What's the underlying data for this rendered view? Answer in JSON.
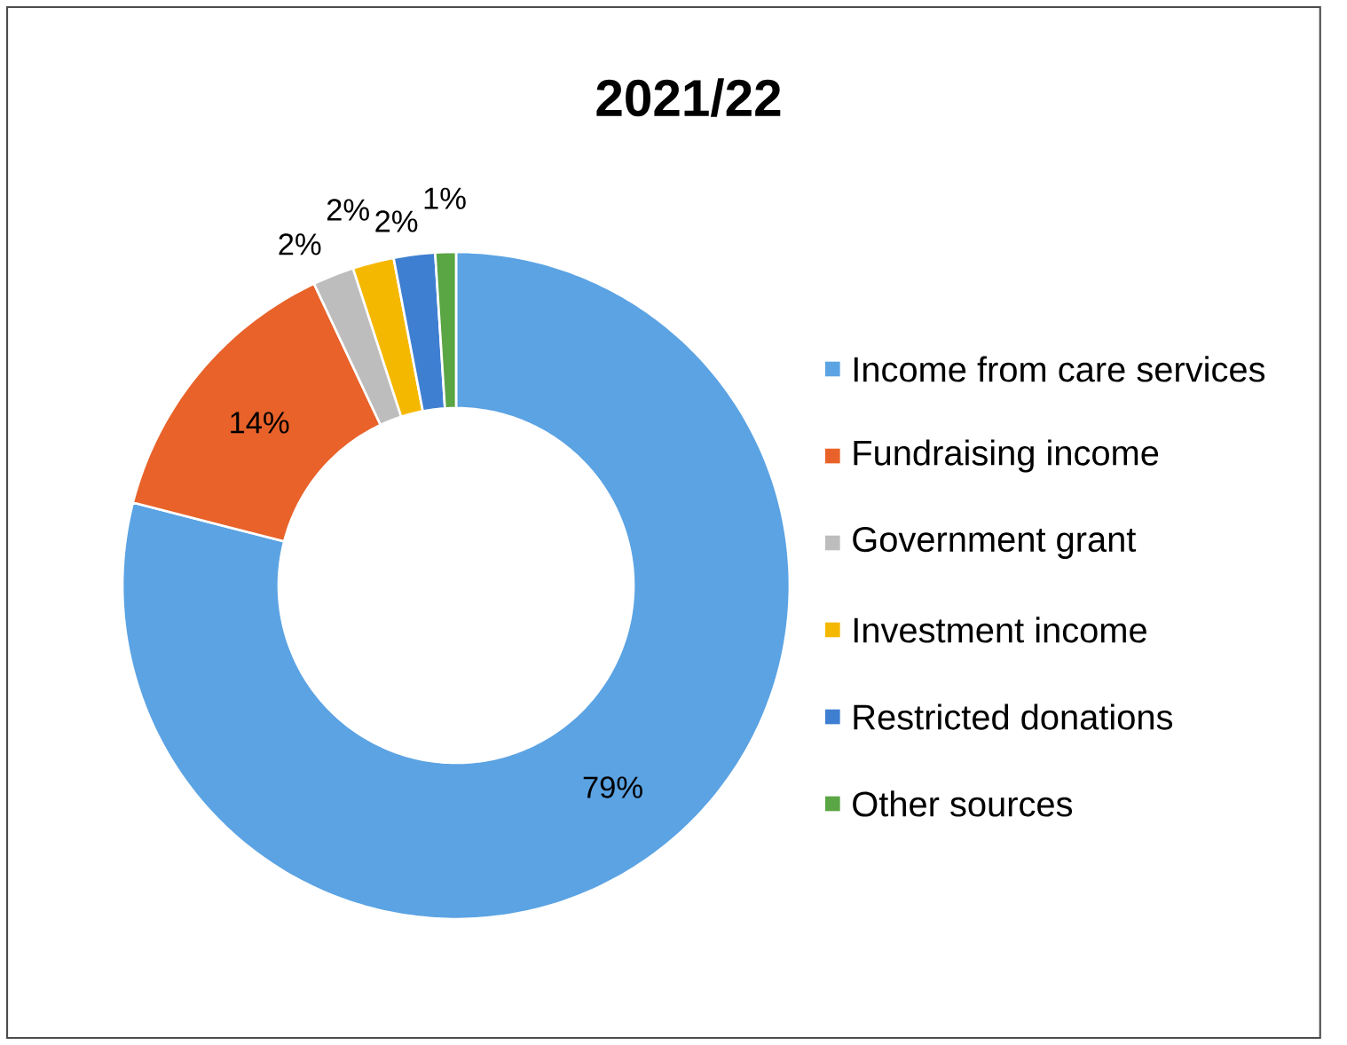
{
  "chart_data": {
    "type": "donut",
    "title": "2021/22",
    "categories": [
      "Income from care services",
      "Fundraising income",
      "Government grant",
      "Investment income",
      "Restricted donations",
      "Other sources"
    ],
    "values": [
      79,
      14,
      2,
      2,
      2,
      1
    ],
    "value_labels": [
      "79%",
      "14%",
      "2%",
      "2%",
      "2%",
      "1%"
    ],
    "colors": [
      "#5ba3e3",
      "#e8622a",
      "#bdbdbd",
      "#f5b800",
      "#3f7fd1",
      "#5aa544"
    ],
    "legend": "right"
  }
}
